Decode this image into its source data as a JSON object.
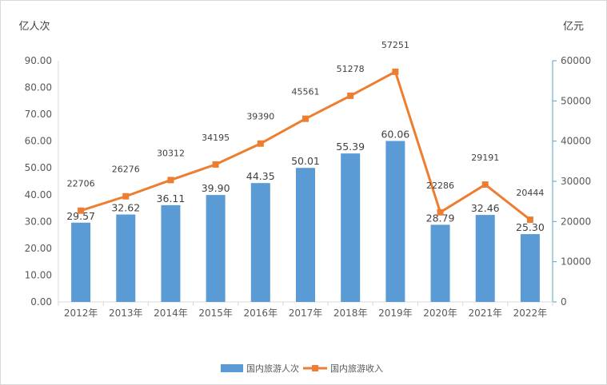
{
  "chart_data": {
    "type": "bar",
    "categories": [
      "2012年",
      "2013年",
      "2014年",
      "2015年",
      "2016年",
      "2017年",
      "2018年",
      "2019年",
      "2020年",
      "2021年",
      "2022年"
    ],
    "left_unit": "亿人次",
    "right_unit": "亿元",
    "y_left": {
      "min": 0,
      "max": 90,
      "step": 10,
      "decimals": 2
    },
    "y_right": {
      "min": 0,
      "max": 60000,
      "step": 10000
    },
    "grid": false,
    "legend_position": "bottom",
    "series": [
      {
        "name": "国内旅游人次",
        "type": "bar",
        "axis": "left",
        "color": "#5b9bd5",
        "values": [
          29.57,
          32.62,
          36.11,
          39.9,
          44.35,
          50.01,
          55.39,
          60.06,
          28.79,
          32.46,
          25.3
        ],
        "labels": [
          "29.57",
          "32.62",
          "36.11",
          "39.90",
          "44.35",
          "50.01",
          "55.39",
          "60.06",
          "28.79",
          "32.46",
          "25.30"
        ]
      },
      {
        "name": "国内旅游收入",
        "type": "line",
        "axis": "right",
        "color": "#ed7d31",
        "marker": "square",
        "values": [
          22706,
          26276,
          30312,
          34195,
          39390,
          45561,
          51278,
          57251,
          22286,
          29191,
          20444
        ],
        "labels": [
          "22706",
          "26276",
          "30312",
          "34195",
          "39390",
          "45561",
          "51278",
          "57251",
          "22286",
          "29191",
          "20444"
        ]
      }
    ]
  }
}
